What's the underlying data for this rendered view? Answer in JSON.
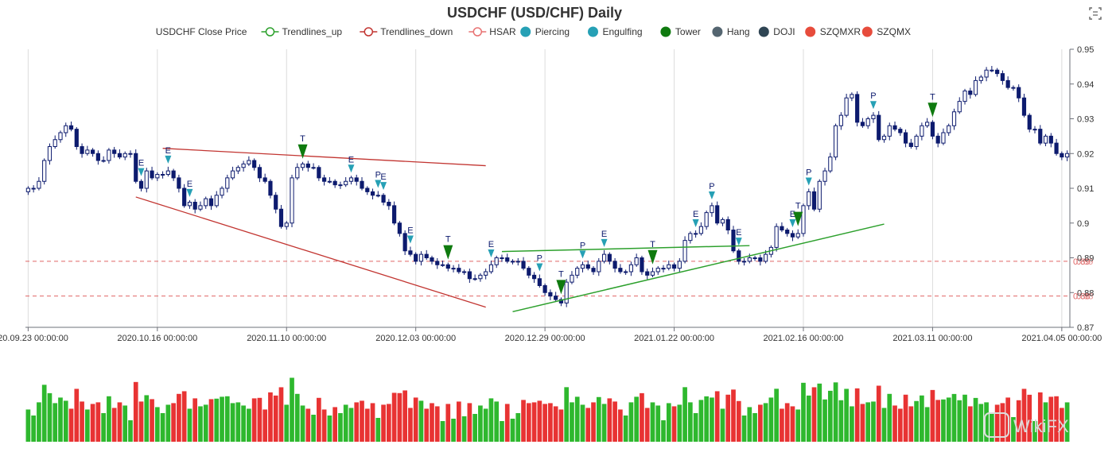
{
  "chart_data": {
    "type": "candlestick",
    "title": "USDCHF (USD/CHF) Daily",
    "legend": [
      {
        "label": "USDCHF Close Price",
        "marker": "none",
        "color": "#333333"
      },
      {
        "label": "Trendlines_up",
        "marker": "ring",
        "color": "#2ca02c"
      },
      {
        "label": "Trendlines_down",
        "marker": "ring",
        "color": "#c23531"
      },
      {
        "label": "HSAR",
        "marker": "ring",
        "color": "#e87272"
      },
      {
        "label": "Piercing",
        "marker": "dot",
        "color": "#26a0b5"
      },
      {
        "label": "Engulfing",
        "marker": "dot",
        "color": "#26a0b5"
      },
      {
        "label": "Tower",
        "marker": "dot",
        "color": "#0f7a0f"
      },
      {
        "label": "Hang",
        "marker": "dot",
        "color": "#546570"
      },
      {
        "label": "DOJI",
        "marker": "dot",
        "color": "#2f4554"
      },
      {
        "label": "SZQMXR",
        "marker": "dot",
        "color": "#e74c3c"
      },
      {
        "label": "SZQMX",
        "marker": "dot",
        "color": "#e74c3c"
      }
    ],
    "legend_placement": "top-center",
    "x_ticks": [
      {
        "label": "2020.09.23 00:00:00",
        "index": 0
      },
      {
        "label": "2020.10.16 00:00:00",
        "index": 24
      },
      {
        "label": "2020.11.10 00:00:00",
        "index": 48
      },
      {
        "label": "2020.12.03 00:00:00",
        "index": 72
      },
      {
        "label": "2020.12.29 00:00:00",
        "index": 96
      },
      {
        "label": "2021.01.22 00:00:00",
        "index": 120
      },
      {
        "label": "2021.02.16 00:00:00",
        "index": 144
      },
      {
        "label": "2021.03.11 00:00:00",
        "index": 168
      },
      {
        "label": "2021.04.05 00:00:00",
        "index": 192
      }
    ],
    "y_ticks": [
      "0.87",
      "0.88",
      "0.89",
      "0.9",
      "0.91",
      "0.92",
      "0.93",
      "0.94",
      "0.95"
    ],
    "ylim": [
      0.87,
      0.95
    ],
    "grid": "vertical",
    "close": [
      0.91,
      0.91,
      0.912,
      0.918,
      0.922,
      0.924,
      0.926,
      0.928,
      0.927,
      0.922,
      0.92,
      0.921,
      0.92,
      0.918,
      0.918,
      0.921,
      0.92,
      0.919,
      0.92,
      0.92,
      0.912,
      0.91,
      0.915,
      0.913,
      0.914,
      0.914,
      0.915,
      0.913,
      0.91,
      0.905,
      0.906,
      0.904,
      0.905,
      0.907,
      0.905,
      0.908,
      0.91,
      0.913,
      0.915,
      0.916,
      0.917,
      0.918,
      0.916,
      0.913,
      0.912,
      0.908,
      0.904,
      0.899,
      0.9,
      0.913,
      0.916,
      0.917,
      0.916,
      0.916,
      0.913,
      0.912,
      0.912,
      0.911,
      0.911,
      0.912,
      0.913,
      0.912,
      0.91,
      0.909,
      0.908,
      0.908,
      0.906,
      0.905,
      0.9,
      0.897,
      0.892,
      0.891,
      0.889,
      0.891,
      0.89,
      0.889,
      0.888,
      0.888,
      0.887,
      0.887,
      0.886,
      0.886,
      0.884,
      0.884,
      0.885,
      0.886,
      0.888,
      0.89,
      0.89,
      0.889,
      0.889,
      0.889,
      0.887,
      0.885,
      0.884,
      0.882,
      0.88,
      0.879,
      0.878,
      0.877,
      0.883,
      0.885,
      0.887,
      0.888,
      0.887,
      0.886,
      0.889,
      0.891,
      0.889,
      0.887,
      0.886,
      0.886,
      0.888,
      0.89,
      0.886,
      0.885,
      0.886,
      0.887,
      0.887,
      0.888,
      0.887,
      0.889,
      0.895,
      0.897,
      0.897,
      0.899,
      0.903,
      0.905,
      0.9,
      0.901,
      0.898,
      0.892,
      0.889,
      0.889,
      0.89,
      0.89,
      0.889,
      0.891,
      0.893,
      0.899,
      0.898,
      0.897,
      0.896,
      0.897,
      0.905,
      0.909,
      0.904,
      0.912,
      0.915,
      0.919,
      0.928,
      0.931,
      0.936,
      0.937,
      0.929,
      0.928,
      0.93,
      0.931,
      0.924,
      0.925,
      0.928,
      0.927,
      0.926,
      0.923,
      0.922,
      0.925,
      0.928,
      0.929,
      0.925,
      0.923,
      0.926,
      0.928,
      0.932,
      0.935,
      0.938,
      0.937,
      0.941,
      0.942,
      0.944,
      0.944,
      0.943,
      0.941,
      0.939,
      0.939,
      0.936,
      0.931,
      0.927,
      0.927,
      0.923,
      0.925,
      0.923,
      0.92,
      0.919,
      0.92
    ],
    "trendlines_down": [
      {
        "from": {
          "index": 25,
          "price": 0.9215
        },
        "to": {
          "index": 85,
          "price": 0.9165
        }
      },
      {
        "from": {
          "index": 20,
          "price": 0.9075
        },
        "to": {
          "index": 85,
          "price": 0.8758
        }
      }
    ],
    "trendlines_up": [
      {
        "from": {
          "index": 88,
          "price": 0.8918
        },
        "to": {
          "index": 134,
          "price": 0.8935
        }
      },
      {
        "from": {
          "index": 90,
          "price": 0.8745
        },
        "to": {
          "index": 159,
          "price": 0.8997
        }
      }
    ],
    "hsar_levels": [
      0.889,
      0.879
    ],
    "hsar_labels": [
      "0.89",
      "0.89",
      "0.88",
      "0.88"
    ],
    "signals": [
      {
        "index": 21,
        "label": "E",
        "kind": "Engulfing"
      },
      {
        "index": 26,
        "label": "E",
        "kind": "Engulfing"
      },
      {
        "index": 30,
        "label": "E",
        "kind": "Engulfing"
      },
      {
        "index": 51,
        "label": "T",
        "kind": "Tower"
      },
      {
        "index": 60,
        "label": "E",
        "kind": "Engulfing"
      },
      {
        "index": 65,
        "label": "P",
        "kind": "Piercing"
      },
      {
        "index": 66,
        "label": "E",
        "kind": "Engulfing"
      },
      {
        "index": 71,
        "label": "E",
        "kind": "Engulfing"
      },
      {
        "index": 78,
        "label": "T",
        "kind": "Tower"
      },
      {
        "index": 86,
        "label": "E",
        "kind": "Engulfing"
      },
      {
        "index": 95,
        "label": "P",
        "kind": "Piercing"
      },
      {
        "index": 99,
        "label": "T",
        "kind": "Tower"
      },
      {
        "index": 103,
        "label": "P",
        "kind": "Piercing"
      },
      {
        "index": 107,
        "label": "E",
        "kind": "Engulfing"
      },
      {
        "index": 116,
        "label": "T",
        "kind": "Tower"
      },
      {
        "index": 124,
        "label": "E",
        "kind": "Engulfing"
      },
      {
        "index": 127,
        "label": "P",
        "kind": "Piercing"
      },
      {
        "index": 132,
        "label": "E",
        "kind": "Engulfing"
      },
      {
        "index": 142,
        "label": "E",
        "kind": "Engulfing"
      },
      {
        "index": 143,
        "label": "T",
        "kind": "Tower"
      },
      {
        "index": 145,
        "label": "P",
        "kind": "Piercing"
      },
      {
        "index": 157,
        "label": "P",
        "kind": "Piercing"
      },
      {
        "index": 168,
        "label": "T",
        "kind": "Tower"
      }
    ],
    "volume_colors": {
      "up": "#2eb82e",
      "down": "#e83333"
    }
  },
  "toolbar": {
    "icon": "restore-zoom-icon"
  },
  "watermark": "WikiFX"
}
